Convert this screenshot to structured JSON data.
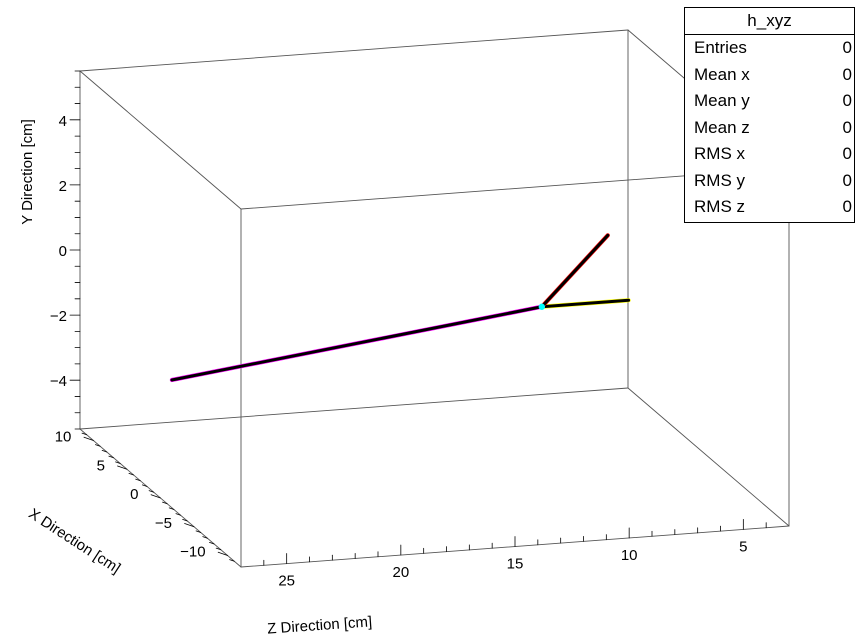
{
  "stats": {
    "title": "h_xyz",
    "rows": [
      {
        "label": "Entries",
        "value": "0"
      },
      {
        "label": "Mean x",
        "value": "0"
      },
      {
        "label": "Mean y",
        "value": "0"
      },
      {
        "label": "Mean z",
        "value": "0"
      },
      {
        "label": "RMS x",
        "value": "0"
      },
      {
        "label": "RMS y",
        "value": "0"
      },
      {
        "label": "RMS z",
        "value": "0"
      }
    ]
  },
  "chart_data": {
    "type": "3d-line",
    "title": "",
    "xlabel": "X Direction [cm]",
    "ylabel": "Y Direction [cm]",
    "zlabel": "Z Direction [cm]",
    "xlim": [
      -12,
      12
    ],
    "ylim": [
      -5.5,
      5.5
    ],
    "zlim": [
      3,
      27
    ],
    "x_ticks": [
      "−10",
      "−5",
      "0",
      "5",
      "10"
    ],
    "x_tick_values": [
      -10,
      -5,
      0,
      5,
      10
    ],
    "y_ticks": [
      "−4",
      "−2",
      "0",
      "2",
      "4"
    ],
    "y_tick_values": [
      -4,
      -2,
      0,
      2,
      4
    ],
    "z_ticks": [
      "25",
      "20",
      "15",
      "10",
      "5"
    ],
    "z_tick_values": [
      25,
      20,
      15,
      10,
      5
    ],
    "grid": false,
    "series": [
      {
        "color": "#000000",
        "accent": "#ff00ff",
        "points": [
          [
            0,
            -1.9,
            26.5
          ],
          [
            0,
            -0.5,
            10.3
          ]
        ]
      },
      {
        "color": "#000000",
        "accent": "#ffff00",
        "points": [
          [
            0,
            -0.5,
            10.3
          ],
          [
            0,
            -0.5,
            6.5
          ]
        ]
      },
      {
        "color": "#000000",
        "accent": "#ff0000",
        "points": [
          [
            0,
            -0.5,
            10.3
          ],
          [
            -0.3,
            1.6,
            7.5
          ]
        ]
      }
    ],
    "vertex": {
      "x": 0,
      "y": -0.5,
      "z": 10.3,
      "color": "#00ffff"
    }
  }
}
